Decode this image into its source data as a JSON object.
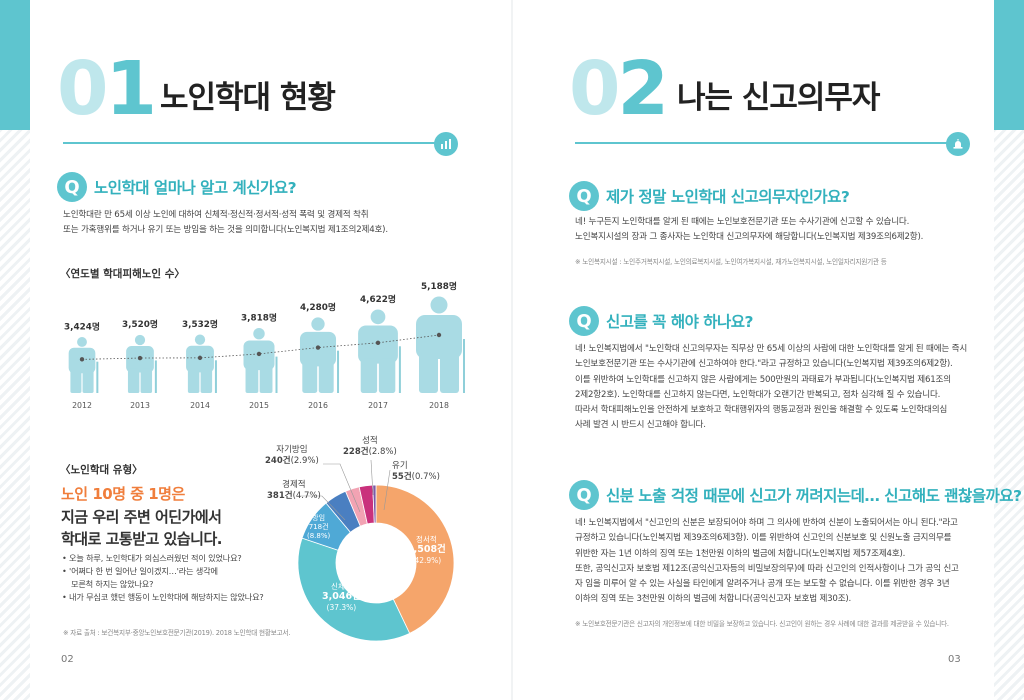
{
  "left": {
    "section": {
      "num_zero": "0",
      "num_rest": "1",
      "title": "노인학대 현황",
      "icon": "bar-chart-icon"
    },
    "q1": {
      "badge": "Q",
      "title": "노인학대 얼마나 알고 계신가요?",
      "line1": "노인학대란 만 65세 이상 노인에 대하여 신체적·정신적·정서적·성적 폭력 및 경제적 착취",
      "line2": "또는 가혹행위를 하거나 유기 또는 방임을 하는 것을 의미합니다(노인복지법 제1조의2제4호)."
    },
    "yearly": {
      "heading": "〈연도별 학대피해노인 수〉",
      "icon": "elderly-person-icon"
    },
    "types": {
      "heading": "〈노인학대 유형〉",
      "headline_orange": "노인 10명 중 1명은",
      "headline_2": "지금 우리 주변 어딘가에서",
      "headline_3": "학대로 고통받고 있습니다.",
      "bullets": [
        "• 오늘 하루, 노인학대가 의심스러웠던 적이 있었나요?",
        "• '어쩌다 한 번 일어난 일이겠지…'라는 생각에",
        "   모른척 하지는 않았나요?",
        "• 내가 무심코 했던 행동이 노인학대에 해당하지는 않았나요?"
      ],
      "source": "※ 자료 출처 : 보건복지부·중앙노인보호전문기관(2019). 2018 노인학대 현황보고서."
    },
    "page_number": "02"
  },
  "right": {
    "section": {
      "num_zero": "0",
      "num_rest": "2",
      "title": "나는 신고의무자",
      "icon": "alarm-bell-icon"
    },
    "q1": {
      "badge": "Q",
      "title": "제가 정말 노인학대 신고의무자인가요?",
      "line1": "네! 누구든지 노인학대를 알게 된 때에는 노인보호전문기관 또는 수사기관에 신고할 수 있습니다.",
      "line2": "노인복지시설의 장과 그 종사자는 노인학대 신고의무자에 해당합니다(노인복지법 제39조의6제2항).",
      "note": "※ 노인복지시설 : 노인주거복지시설, 노인의료복지시설, 노인여가복지시설, 재가노인복지시설, 노인일자리지원기관 등"
    },
    "q2": {
      "badge": "Q",
      "title": "신고를 꼭 해야 하나요?",
      "lines": [
        "네! 노인복지법에서 \"노인학대 신고의무자는 직무상 만 65세 이상의 사람에 대한 노인학대를 알게 된 때에는 즉시",
        "노인보호전문기관 또는 수사기관에 신고하여야 한다.\"라고 규정하고 있습니다(노인복지법 제39조의6제2항).",
        "이를 위반하여 노인학대를 신고하지 않은 사람에게는 500만원의 과태료가 부과됩니다(노인복지법 제61조의",
        "2제2항2호). 노인학대를 신고하지 않는다면, 노인학대가 오랜기간 반복되고, 점차 심각해 질 수 있습니다.",
        "따라서 학대피해노인을 안전하게 보호하고 학대행위자의 행동교정과 원인을 해결할 수 있도록 노인학대의심",
        "사례 발견 시 반드시 신고해야 합니다."
      ]
    },
    "q3": {
      "badge": "Q",
      "title": "신분 노출 걱정 때문에 신고가 꺼려지는데… 신고해도 괜찮을까요?",
      "lines": [
        "네! 노인복지법에서 \"신고인의 신분은 보장되어야 하며 그 의사에 반하여 신분이 노출되어서는 아니 된다.\"라고",
        "규정하고 있습니다(노인복지법 제39조의6제3항). 이를 위반하여 신고인의 신분보호 및 신원노출 금지의무를",
        "위반한 자는 1년 이하의 징역 또는 1천만원 이하의 벌금에 처합니다(노인복지법 제57조제4호).",
        "또한, 공익신고자 보호법 제12조(공익신고자등의 비밀보장의무)에 따라 신고인의 인적사항이나 그가 공익 신고",
        "자 임을 미루어 알 수 있는 사실을 타인에게 알려주거나 공개 또는 보도할 수 없습니다. 이를 위반한 경우 3년",
        "이하의 징역 또는 3천만원 이하의 벌금에 처합니다(공익신고자 보호법 제30조)."
      ],
      "note": "※ 노인보호전문기관은 신고자의 개인정보에 대한 비밀을 보장하고 있습니다. 신고인이 원하는 경우 사례에 대한 결과를 제공받을 수 있습니다."
    },
    "page_number": "03"
  },
  "chart_data": [
    {
      "type": "bar",
      "title": "〈연도별 학대피해노인 수〉",
      "categories": [
        "2012",
        "2013",
        "2014",
        "2015",
        "2016",
        "2017",
        "2018"
      ],
      "values": [
        3424,
        3520,
        3532,
        3818,
        4280,
        4622,
        5188
      ],
      "value_labels": [
        "3,424명",
        "3,520명",
        "3,532명",
        "3,818명",
        "4,280명",
        "4,622명",
        "5,188명"
      ],
      "color": "#a9dbe4",
      "trend_line": true
    },
    {
      "type": "pie",
      "title": "〈노인학대 유형〉",
      "donut": true,
      "slices": [
        {
          "name": "정서적",
          "value": 3508,
          "label": "3,508건",
          "pct": "(42.9%)",
          "color": "#f5a56b",
          "inside": true
        },
        {
          "name": "신체적",
          "value": 3046,
          "label": "3,046건",
          "pct": "(37.3%)",
          "color": "#5ec5cf",
          "inside": true
        },
        {
          "name": "방임",
          "value": 718,
          "label": "718건",
          "pct": "(8.8%)",
          "color": "#4fa9d6",
          "inside": true
        },
        {
          "name": "경제적",
          "value": 381,
          "label": "381건",
          "pct": "(4.7%)",
          "color": "#4a7fc1",
          "inside": false
        },
        {
          "name": "자기방임",
          "value": 240,
          "label": "240건",
          "pct": "(2.9%)",
          "color": "#f2a3b3",
          "inside": false
        },
        {
          "name": "성적",
          "value": 228,
          "label": "228건",
          "pct": "(2.8%)",
          "color": "#c9317c",
          "inside": false
        },
        {
          "name": "유기",
          "value": 55,
          "label": "55건",
          "pct": "(0.7%)",
          "color": "#7a5aa6",
          "inside": false
        }
      ]
    }
  ]
}
